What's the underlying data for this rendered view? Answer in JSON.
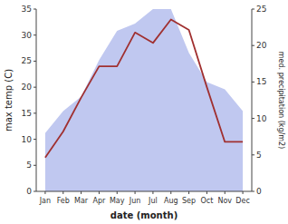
{
  "chart_data": {
    "type": "line",
    "xlabel": "date (month)",
    "ylabel": "max temp (C)",
    "y2label": "med. precipitation (kg/m2)",
    "categories": [
      "Jan",
      "Feb",
      "Mar",
      "Apr",
      "May",
      "Jun",
      "Jul",
      "Aug",
      "Sep",
      "Oct",
      "Nov",
      "Dec"
    ],
    "series": [
      {
        "type": "area",
        "axis": "y2",
        "color": "#c0c8f0",
        "values": [
          8,
          11,
          13,
          18,
          22,
          23,
          25,
          25,
          19,
          15,
          14,
          11
        ]
      },
      {
        "type": "line",
        "color": "#a03030",
        "values": [
          6.5,
          11.5,
          18.0,
          24.0,
          24.0,
          30.5,
          28.5,
          33.0,
          31.0,
          20.0,
          9.5,
          9.5
        ]
      }
    ],
    "ylim": [
      0,
      35
    ],
    "yticks": [
      0,
      5,
      10,
      15,
      20,
      25,
      30,
      35
    ],
    "y2lim": [
      0,
      25
    ],
    "y2ticks": [
      0,
      5,
      10,
      15,
      20,
      25
    ]
  }
}
